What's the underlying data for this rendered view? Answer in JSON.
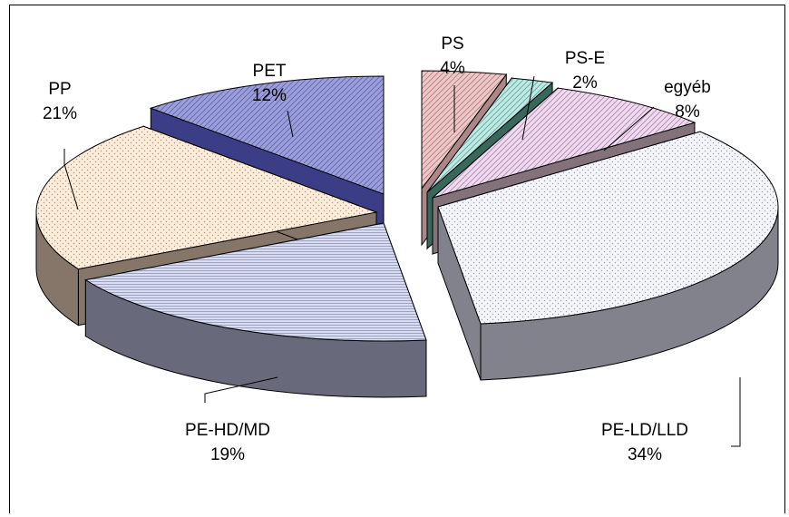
{
  "chart_data": {
    "type": "pie",
    "style": "3d-exploded",
    "title": "",
    "slices": [
      {
        "name": "PS",
        "value": 4,
        "label_pct": "4%",
        "color": "#f2c6c6",
        "side_color": "#b89090",
        "pattern": "diag-dense"
      },
      {
        "name": "PS-E",
        "value": 2,
        "label_pct": "2%",
        "color": "#b8ece4",
        "side_color": "#3c6e62",
        "pattern": "diag-dense"
      },
      {
        "name": "egyéb",
        "value": 8,
        "label_pct": "8%",
        "color": "#f3d8f3",
        "side_color": "#8c7a82",
        "pattern": "diag-dense"
      },
      {
        "name": "PE-LD/LLD",
        "value": 34,
        "label_pct": "34%",
        "color": "#f4f4fb",
        "side_color": "#8a8a96",
        "pattern": "dots"
      },
      {
        "name": "PE-HD/MD",
        "value": 19,
        "label_pct": "19%",
        "color": "#d8dcf2",
        "side_color": "#6f7184",
        "pattern": "horizontal"
      },
      {
        "name": "PP",
        "value": 21,
        "label_pct": "21%",
        "color": "#fcecd8",
        "side_color": "#8f7e70",
        "pattern": "dots"
      },
      {
        "name": "PET",
        "value": 12,
        "label_pct": "12%",
        "color": "#9a9ee0",
        "side_color": "#3f4290",
        "pattern": "diag-dense"
      }
    ],
    "legend": "none",
    "labels": "outside-with-leaders"
  }
}
